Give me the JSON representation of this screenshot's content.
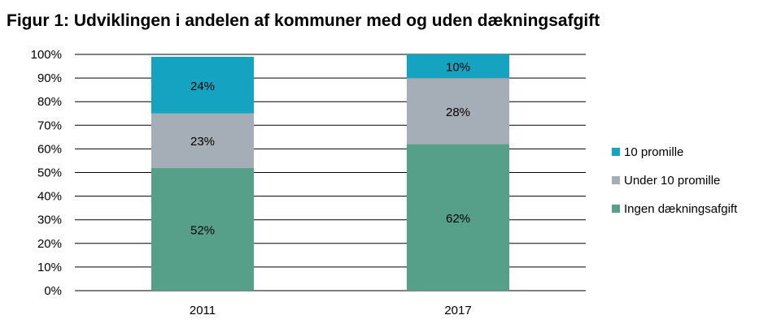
{
  "chart_data": {
    "type": "bar",
    "stacked": true,
    "title": "Figur 1: Udviklingen i andelen af kommuner med og uden dækningsafgift",
    "categories": [
      "2011",
      "2017"
    ],
    "series": [
      {
        "name": "Ingen dækningsafgift",
        "values": [
          52,
          62
        ],
        "labels": [
          "52%",
          "62%"
        ],
        "color": "#56A08A"
      },
      {
        "name": "Under 10 promille",
        "values": [
          23,
          28
        ],
        "labels": [
          "23%",
          "28%"
        ],
        "color": "#A5ADB7"
      },
      {
        "name": "10 promille",
        "values": [
          24,
          10
        ],
        "labels": [
          "24%",
          "10%"
        ],
        "color": "#14A4C2"
      }
    ],
    "legend_order": [
      "10 promille",
      "Under 10 promille",
      "Ingen dækningsafgift"
    ],
    "ylim": [
      0,
      100
    ],
    "yticks": [
      "0%",
      "10%",
      "20%",
      "30%",
      "40%",
      "50%",
      "60%",
      "70%",
      "80%",
      "90%",
      "100%"
    ],
    "xlabel": "",
    "ylabel": "",
    "grid": true,
    "legend_position": "right"
  }
}
